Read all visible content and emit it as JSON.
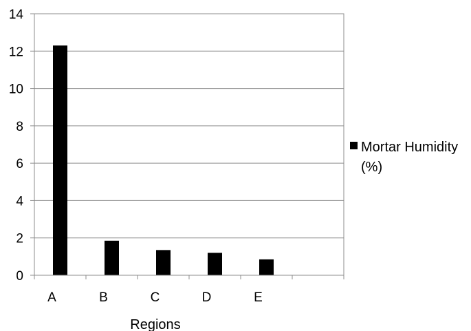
{
  "chart_data": {
    "type": "bar",
    "categories": [
      "A",
      "B",
      "C",
      "D",
      "E",
      ""
    ],
    "series": [
      {
        "name": "Mortar Humidity (%)",
        "values": [
          12.3,
          1.85,
          1.35,
          1.2,
          0.85,
          null
        ],
        "color": "#000000"
      }
    ],
    "title": "",
    "xlabel": "Regions",
    "ylabel": "",
    "ylim": [
      0,
      14
    ],
    "yticks": [
      "0",
      "2",
      "4",
      "6",
      "8",
      "10",
      "12",
      "14"
    ],
    "grid": true,
    "legend_position": "right",
    "legend_lines": [
      "Mortar Humidity",
      "(%)"
    ]
  }
}
